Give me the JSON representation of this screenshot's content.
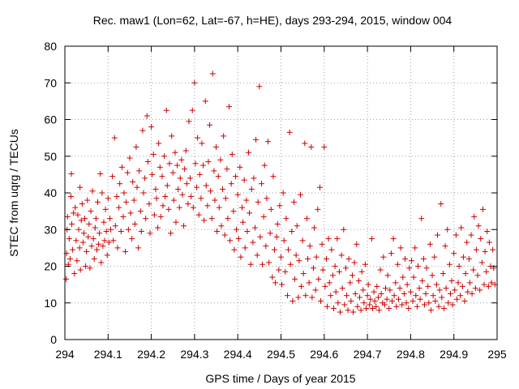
{
  "chart_data": {
    "type": "scatter",
    "title": "Rec. maw1 (Lon=62, Lat=-67, h=HE), days 293-294, 2015, window 004",
    "xlabel": "GPS time / Days of year 2015",
    "ylabel": "STEC from uqrg / TECUs",
    "xlim": [
      294,
      295
    ],
    "ylim": [
      0,
      80
    ],
    "xticks": [
      "294",
      "294.1",
      "294.2",
      "294.3",
      "294.4",
      "294.5",
      "294.6",
      "294.7",
      "294.8",
      "294.9",
      "295"
    ],
    "yticks": [
      "0",
      "10",
      "20",
      "30",
      "40",
      "50",
      "60",
      "70",
      "80"
    ],
    "grid": true,
    "marker": "plus",
    "color": "#cc0000",
    "points": [
      [
        294.003,
        16.5
      ],
      [
        294.004,
        23.5
      ],
      [
        294.005,
        30.0
      ],
      [
        294.006,
        33.5
      ],
      [
        294.008,
        20.5
      ],
      [
        294.01,
        27.5
      ],
      [
        294.012,
        22.0
      ],
      [
        294.014,
        39.0
      ],
      [
        294.015,
        45.2
      ],
      [
        294.016,
        31.5
      ],
      [
        294.018,
        24.5
      ],
      [
        294.02,
        34.5
      ],
      [
        294.022,
        18.0
      ],
      [
        294.024,
        36.0
      ],
      [
        294.026,
        27.0
      ],
      [
        294.028,
        21.5
      ],
      [
        294.03,
        34.0
      ],
      [
        294.032,
        30.0
      ],
      [
        294.034,
        25.0
      ],
      [
        294.035,
        41.5
      ],
      [
        294.036,
        19.0
      ],
      [
        294.038,
        32.5
      ],
      [
        294.04,
        37.0
      ],
      [
        294.042,
        26.5
      ],
      [
        294.044,
        29.0
      ],
      [
        294.046,
        33.0
      ],
      [
        294.048,
        20.0
      ],
      [
        294.05,
        24.0
      ],
      [
        294.052,
        38.0
      ],
      [
        294.054,
        28.0
      ],
      [
        294.056,
        31.5
      ],
      [
        294.058,
        19.5
      ],
      [
        294.06,
        35.0
      ],
      [
        294.062,
        25.5
      ],
      [
        294.064,
        40.5
      ],
      [
        294.066,
        27.5
      ],
      [
        294.068,
        22.0
      ],
      [
        294.07,
        30.5
      ],
      [
        294.072,
        33.0
      ],
      [
        294.074,
        24.5
      ],
      [
        294.076,
        37.5
      ],
      [
        294.078,
        26.0
      ],
      [
        294.08,
        29.0
      ],
      [
        294.082,
        45.2
      ],
      [
        294.084,
        21.0
      ],
      [
        294.086,
        40.0
      ],
      [
        294.088,
        25.5
      ],
      [
        294.09,
        32.0
      ],
      [
        294.092,
        27.0
      ],
      [
        294.094,
        35.5
      ],
      [
        294.096,
        29.5
      ],
      [
        294.098,
        23.0
      ],
      [
        294.1,
        38.5
      ],
      [
        294.102,
        26.5
      ],
      [
        294.104,
        33.0
      ],
      [
        294.106,
        30.0
      ],
      [
        294.11,
        44.5
      ],
      [
        294.112,
        27.0
      ],
      [
        294.115,
        55.0
      ],
      [
        294.117,
        31.0
      ],
      [
        294.12,
        39.0
      ],
      [
        294.122,
        25.0
      ],
      [
        294.125,
        36.0
      ],
      [
        294.127,
        42.5
      ],
      [
        294.13,
        29.5
      ],
      [
        294.132,
        47.0
      ],
      [
        294.135,
        33.5
      ],
      [
        294.137,
        40.0
      ],
      [
        294.14,
        24.0
      ],
      [
        294.142,
        37.5
      ],
      [
        294.145,
        45.5
      ],
      [
        294.147,
        30.0
      ],
      [
        294.15,
        49.5
      ],
      [
        294.152,
        34.5
      ],
      [
        294.155,
        27.5
      ],
      [
        294.157,
        43.0
      ],
      [
        294.16,
        38.0
      ],
      [
        294.162,
        31.5
      ],
      [
        294.165,
        52.5
      ],
      [
        294.167,
        41.5
      ],
      [
        294.17,
        25.0
      ],
      [
        294.172,
        46.0
      ],
      [
        294.175,
        35.0
      ],
      [
        294.177,
        29.5
      ],
      [
        294.18,
        57.0
      ],
      [
        294.182,
        40.0
      ],
      [
        294.185,
        44.0
      ],
      [
        294.187,
        33.0
      ],
      [
        294.19,
        61.0
      ],
      [
        294.192,
        48.5
      ],
      [
        294.195,
        37.0
      ],
      [
        294.197,
        29.0
      ],
      [
        294.2,
        58.0
      ],
      [
        294.202,
        45.0
      ],
      [
        294.205,
        50.5
      ],
      [
        294.207,
        34.0
      ],
      [
        294.21,
        41.0
      ],
      [
        294.212,
        38.5
      ],
      [
        294.215,
        30.5
      ],
      [
        294.217,
        53.5
      ],
      [
        294.22,
        47.0
      ],
      [
        294.222,
        33.5
      ],
      [
        294.225,
        44.5
      ],
      [
        294.227,
        36.5
      ],
      [
        294.23,
        50.0
      ],
      [
        294.232,
        39.0
      ],
      [
        294.235,
        62.5
      ],
      [
        294.237,
        42.0
      ],
      [
        294.24,
        35.5
      ],
      [
        294.242,
        48.0
      ],
      [
        294.245,
        29.0
      ],
      [
        294.247,
        55.5
      ],
      [
        294.25,
        45.5
      ],
      [
        294.252,
        38.0
      ],
      [
        294.255,
        51.0
      ],
      [
        294.257,
        32.0
      ],
      [
        294.26,
        47.5
      ],
      [
        294.262,
        41.0
      ],
      [
        294.265,
        36.0
      ],
      [
        294.267,
        44.0
      ],
      [
        294.27,
        49.0
      ],
      [
        294.272,
        39.5
      ],
      [
        294.275,
        31.0
      ],
      [
        294.277,
        46.5
      ],
      [
        294.28,
        51.5
      ],
      [
        294.282,
        42.5
      ],
      [
        294.285,
        37.0
      ],
      [
        294.287,
        59.5
      ],
      [
        294.29,
        44.0
      ],
      [
        294.292,
        39.0
      ],
      [
        294.295,
        62.5
      ],
      [
        294.297,
        36.0
      ],
      [
        294.3,
        70.0
      ],
      [
        294.302,
        48.0
      ],
      [
        294.305,
        41.5
      ],
      [
        294.307,
        55.0
      ],
      [
        294.31,
        34.0
      ],
      [
        294.312,
        45.0
      ],
      [
        294.315,
        38.5
      ],
      [
        294.317,
        53.5
      ],
      [
        294.32,
        47.5
      ],
      [
        294.322,
        32.5
      ],
      [
        294.325,
        65.0
      ],
      [
        294.327,
        42.0
      ],
      [
        294.33,
        36.5
      ],
      [
        294.332,
        48.5
      ],
      [
        294.335,
        58.5
      ],
      [
        294.337,
        40.5
      ],
      [
        294.34,
        33.0
      ],
      [
        294.342,
        72.5
      ],
      [
        294.345,
        46.0
      ],
      [
        294.347,
        38.0
      ],
      [
        294.35,
        52.5
      ],
      [
        294.352,
        29.5
      ],
      [
        294.355,
        44.5
      ],
      [
        294.357,
        36.0
      ],
      [
        294.36,
        49.0
      ],
      [
        294.362,
        31.0
      ],
      [
        294.365,
        41.0
      ],
      [
        294.367,
        55.5
      ],
      [
        294.37,
        28.5
      ],
      [
        294.372,
        38.5
      ],
      [
        294.375,
        46.5
      ],
      [
        294.377,
        33.0
      ],
      [
        294.38,
        63.5
      ],
      [
        294.382,
        27.0
      ],
      [
        294.385,
        42.5
      ],
      [
        294.387,
        50.5
      ],
      [
        294.39,
        35.0
      ],
      [
        294.392,
        24.5
      ],
      [
        294.395,
        44.5
      ],
      [
        294.397,
        30.0
      ],
      [
        294.4,
        39.5
      ],
      [
        294.402,
        27.5
      ],
      [
        294.405,
        47.0
      ],
      [
        294.407,
        22.5
      ],
      [
        294.41,
        36.0
      ],
      [
        294.412,
        32.0
      ],
      [
        294.415,
        43.5
      ],
      [
        294.417,
        25.0
      ],
      [
        294.42,
        38.0
      ],
      [
        294.422,
        29.5
      ],
      [
        294.425,
        51.0
      ],
      [
        294.427,
        34.5
      ],
      [
        294.43,
        20.5
      ],
      [
        294.432,
        41.0
      ],
      [
        294.435,
        26.5
      ],
      [
        294.437,
        44.0
      ],
      [
        294.44,
        30.5
      ],
      [
        294.442,
        54.5
      ],
      [
        294.445,
        23.0
      ],
      [
        294.447,
        37.5
      ],
      [
        294.45,
        69.0
      ],
      [
        294.452,
        28.0
      ],
      [
        294.455,
        42.5
      ],
      [
        294.457,
        20.5
      ],
      [
        294.46,
        33.5
      ],
      [
        294.462,
        47.5
      ],
      [
        294.465,
        25.5
      ],
      [
        294.467,
        38.5
      ],
      [
        294.47,
        54.0
      ],
      [
        294.472,
        21.0
      ],
      [
        294.475,
        29.0
      ],
      [
        294.477,
        35.5
      ],
      [
        294.48,
        17.0
      ],
      [
        294.482,
        44.5
      ],
      [
        294.485,
        24.5
      ],
      [
        294.487,
        15.5
      ],
      [
        294.49,
        28.0
      ],
      [
        294.492,
        31.5
      ],
      [
        294.495,
        19.0
      ],
      [
        294.497,
        36.5
      ],
      [
        294.5,
        22.5
      ],
      [
        294.502,
        15.0
      ],
      [
        294.505,
        40.0
      ],
      [
        294.507,
        27.0
      ],
      [
        294.51,
        18.5
      ],
      [
        294.512,
        33.0
      ],
      [
        294.515,
        12.0
      ],
      [
        294.517,
        24.5
      ],
      [
        294.52,
        56.5
      ],
      [
        294.522,
        20.5
      ],
      [
        294.525,
        29.5
      ],
      [
        294.527,
        10.5
      ],
      [
        294.53,
        37.5
      ],
      [
        294.532,
        16.5
      ],
      [
        294.535,
        23.0
      ],
      [
        294.537,
        31.0
      ],
      [
        294.54,
        11.5
      ],
      [
        294.542,
        21.5
      ],
      [
        294.545,
        39.5
      ],
      [
        294.547,
        14.5
      ],
      [
        294.55,
        27.0
      ],
      [
        294.552,
        18.0
      ],
      [
        294.555,
        53.5
      ],
      [
        294.557,
        12.0
      ],
      [
        294.56,
        33.0
      ],
      [
        294.562,
        22.0
      ],
      [
        294.565,
        15.5
      ],
      [
        294.567,
        25.5
      ],
      [
        294.57,
        52.5
      ],
      [
        294.572,
        11.5
      ],
      [
        294.575,
        19.5
      ],
      [
        294.577,
        30.5
      ],
      [
        294.58,
        13.5
      ],
      [
        294.582,
        22.5
      ],
      [
        294.585,
        35.5
      ],
      [
        294.587,
        16.5
      ],
      [
        294.59,
        41.5
      ],
      [
        294.592,
        10.5
      ],
      [
        294.595,
        26.0
      ],
      [
        294.597,
        19.0
      ],
      [
        294.6,
        52.5
      ],
      [
        294.602,
        14.5
      ],
      [
        294.605,
        22.0
      ],
      [
        294.607,
        9.0
      ],
      [
        294.61,
        27.5
      ],
      [
        294.612,
        15.5
      ],
      [
        294.615,
        12.0
      ],
      [
        294.617,
        24.5
      ],
      [
        294.62,
        17.5
      ],
      [
        294.622,
        8.5
      ],
      [
        294.625,
        20.0
      ],
      [
        294.627,
        13.0
      ],
      [
        294.63,
        27.5
      ],
      [
        294.632,
        10.0
      ],
      [
        294.635,
        18.5
      ],
      [
        294.637,
        7.5
      ],
      [
        294.64,
        23.0
      ],
      [
        294.642,
        14.0
      ],
      [
        294.645,
        30.0
      ],
      [
        294.647,
        9.5
      ],
      [
        294.65,
        19.5
      ],
      [
        294.652,
        12.0
      ],
      [
        294.655,
        8.0
      ],
      [
        294.657,
        22.0
      ],
      [
        294.66,
        15.5
      ],
      [
        294.662,
        10.5
      ],
      [
        294.665,
        17.5
      ],
      [
        294.667,
        7.5
      ],
      [
        294.67,
        21.0
      ],
      [
        294.672,
        12.5
      ],
      [
        294.675,
        26.0
      ],
      [
        294.677,
        9.0
      ],
      [
        294.68,
        16.0
      ],
      [
        294.682,
        11.5
      ],
      [
        294.685,
        8.0
      ],
      [
        294.687,
        18.5
      ],
      [
        294.69,
        13.5
      ],
      [
        294.692,
        10.0
      ],
      [
        294.695,
        20.5
      ],
      [
        294.697,
        8.5
      ],
      [
        294.7,
        12.0
      ],
      [
        294.702,
        15.0
      ],
      [
        294.705,
        9.5
      ],
      [
        294.707,
        11.0
      ],
      [
        294.71,
        27.5
      ],
      [
        294.712,
        8.5
      ],
      [
        294.715,
        13.0
      ],
      [
        294.717,
        10.5
      ],
      [
        294.72,
        9.0
      ],
      [
        294.722,
        14.5
      ],
      [
        294.725,
        11.5
      ],
      [
        294.727,
        8.0
      ],
      [
        294.73,
        19.0
      ],
      [
        294.732,
        12.5
      ],
      [
        294.735,
        10.0
      ],
      [
        294.737,
        22.5
      ],
      [
        294.74,
        9.5
      ],
      [
        294.742,
        14.0
      ],
      [
        294.745,
        11.0
      ],
      [
        294.747,
        17.5
      ],
      [
        294.75,
        8.5
      ],
      [
        294.752,
        13.5
      ],
      [
        294.755,
        23.5
      ],
      [
        294.757,
        10.5
      ],
      [
        294.76,
        27.5
      ],
      [
        294.762,
        12.0
      ],
      [
        294.765,
        15.5
      ],
      [
        294.767,
        9.0
      ],
      [
        294.77,
        20.5
      ],
      [
        294.772,
        11.0
      ],
      [
        294.775,
        14.0
      ],
      [
        294.777,
        25.0
      ],
      [
        294.78,
        9.5
      ],
      [
        294.782,
        17.0
      ],
      [
        294.785,
        12.5
      ],
      [
        294.787,
        22.0
      ],
      [
        294.79,
        10.0
      ],
      [
        294.792,
        15.0
      ],
      [
        294.795,
        8.5
      ],
      [
        294.797,
        19.5
      ],
      [
        294.8,
        13.0
      ],
      [
        294.802,
        21.5
      ],
      [
        294.805,
        10.5
      ],
      [
        294.807,
        17.0
      ],
      [
        294.81,
        25.0
      ],
      [
        294.812,
        12.0
      ],
      [
        294.815,
        9.0
      ],
      [
        294.817,
        20.0
      ],
      [
        294.82,
        14.0
      ],
      [
        294.822,
        11.0
      ],
      [
        294.825,
        33.0
      ],
      [
        294.827,
        16.0
      ],
      [
        294.83,
        22.0
      ],
      [
        294.832,
        9.5
      ],
      [
        294.835,
        12.5
      ],
      [
        294.837,
        19.5
      ],
      [
        294.84,
        14.5
      ],
      [
        294.842,
        10.0
      ],
      [
        294.845,
        26.0
      ],
      [
        294.847,
        8.0
      ],
      [
        294.85,
        17.5
      ],
      [
        294.852,
        12.0
      ],
      [
        294.855,
        22.5
      ],
      [
        294.857,
        10.5
      ],
      [
        294.86,
        15.0
      ],
      [
        294.862,
        28.5
      ],
      [
        294.865,
        9.0
      ],
      [
        294.867,
        13.5
      ],
      [
        294.87,
        37.0
      ],
      [
        294.872,
        11.5
      ],
      [
        294.875,
        18.0
      ],
      [
        294.877,
        8.5
      ],
      [
        294.88,
        25.5
      ],
      [
        294.882,
        14.0
      ],
      [
        294.885,
        30.0
      ],
      [
        294.887,
        10.0
      ],
      [
        294.89,
        20.5
      ],
      [
        294.892,
        12.5
      ],
      [
        294.895,
        16.0
      ],
      [
        294.897,
        9.5
      ],
      [
        294.9,
        23.5
      ],
      [
        294.902,
        13.5
      ],
      [
        294.905,
        28.5
      ],
      [
        294.907,
        11.0
      ],
      [
        294.91,
        15.5
      ],
      [
        294.912,
        20.0
      ],
      [
        294.915,
        12.0
      ],
      [
        294.917,
        30.5
      ],
      [
        294.92,
        14.5
      ],
      [
        294.922,
        22.5
      ],
      [
        294.925,
        10.5
      ],
      [
        294.927,
        18.0
      ],
      [
        294.93,
        26.5
      ],
      [
        294.932,
        13.0
      ],
      [
        294.935,
        22.0
      ],
      [
        294.937,
        15.5
      ],
      [
        294.94,
        28.5
      ],
      [
        294.942,
        12.5
      ],
      [
        294.945,
        19.0
      ],
      [
        294.947,
        33.5
      ],
      [
        294.95,
        14.0
      ],
      [
        294.952,
        24.5
      ],
      [
        294.955,
        17.5
      ],
      [
        294.957,
        31.0
      ],
      [
        294.96,
        13.5
      ],
      [
        294.962,
        27.5
      ],
      [
        294.965,
        21.0
      ],
      [
        294.967,
        35.5
      ],
      [
        294.97,
        15.0
      ],
      [
        294.972,
        24.0
      ],
      [
        294.975,
        18.5
      ],
      [
        294.977,
        29.5
      ],
      [
        294.98,
        14.5
      ],
      [
        294.982,
        26.5
      ],
      [
        294.985,
        20.0
      ],
      [
        294.987,
        15.5
      ],
      [
        294.99,
        24.5
      ],
      [
        294.992,
        19.5
      ],
      [
        294.995,
        15.0
      ]
    ]
  }
}
